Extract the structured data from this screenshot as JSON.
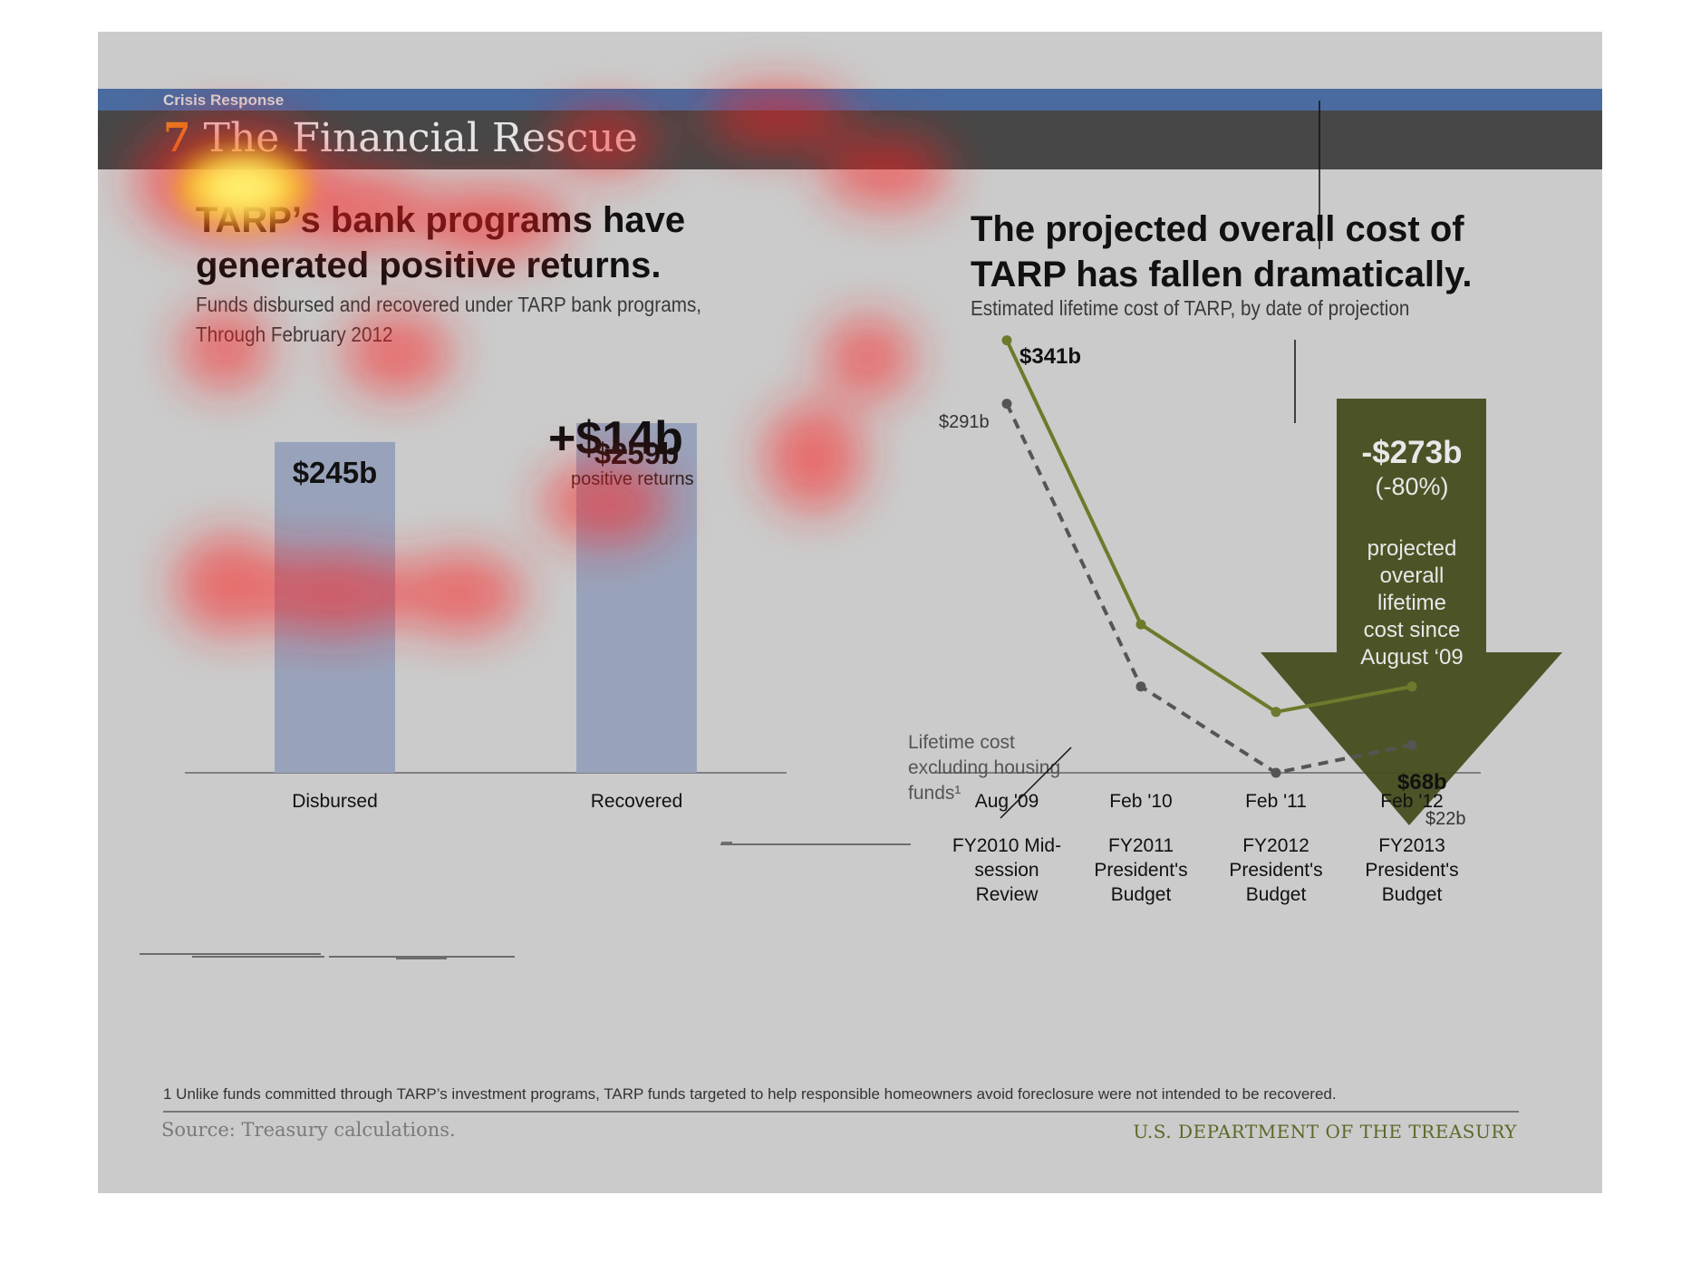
{
  "header": {
    "section": "Crisis Response",
    "number": "7",
    "title": "The Financial Rescue"
  },
  "left": {
    "headline_line1": "TARP’s bank programs have",
    "headline_line2": "generated positive returns.",
    "subtitle_line1": "Funds disbursed and recovered under TARP bank programs,",
    "subtitle_line2": "Through February 2012",
    "delta_value": "+$14b",
    "delta_label": "positive returns"
  },
  "right": {
    "headline_line1": "The projected overall cost of",
    "headline_line2": "TARP has fallen dramatically.",
    "subtitle": "Estimated lifetime cost of TARP, by date of projection",
    "arrow_line1": "-$273b",
    "arrow_line2": "(-80%)",
    "arrow_text": [
      "projected",
      "overall",
      "lifetime",
      "cost since",
      "August ‘09"
    ],
    "callout": [
      "Lifetime cost",
      "excluding housing",
      "funds¹"
    ]
  },
  "footnote": "1 Unlike funds committed through TARP’s investment programs, TARP funds targeted to help responsible homeowners avoid foreclosure were not intended to be recovered.",
  "source": "Source: Treasury calculations.",
  "agency": "U.S. DEPARTMENT OF THE TREASURY",
  "colors": {
    "bar": "#98a3bb",
    "line_total": "#6d7a2c",
    "line_excl": "#555555",
    "arrow": "#444d1e",
    "blue_band": "#4a6ba0",
    "title_band": "#474747",
    "slide_bg": "#cbcbcb",
    "number_accent": "#e58a1f"
  },
  "chart_data": [
    {
      "type": "bar",
      "categories": [
        "Disbursed",
        "Recovered"
      ],
      "values": [
        245,
        259
      ],
      "data_labels": [
        "$245b",
        "$259b"
      ],
      "unit": "$ billions"
    },
    {
      "type": "line",
      "categories": [
        "Aug '09",
        "Feb '10",
        "Feb '11",
        "Feb '12"
      ],
      "sub_categories": [
        "FY2010 Mid-session Review",
        "FY2011 President's Budget",
        "FY2012 President's Budget",
        "FY2013 President's Budget"
      ],
      "series": [
        {
          "values": [
            341,
            117,
            48,
            68
          ],
          "style": "solid",
          "labels": [
            "$341b",
            "",
            "",
            "$68b"
          ]
        },
        {
          "values": [
            291,
            68,
            0,
            22
          ],
          "style": "dashed",
          "labels": [
            "$291b",
            "",
            "",
            "$22b"
          ]
        }
      ],
      "unit": "$ billions"
    }
  ]
}
